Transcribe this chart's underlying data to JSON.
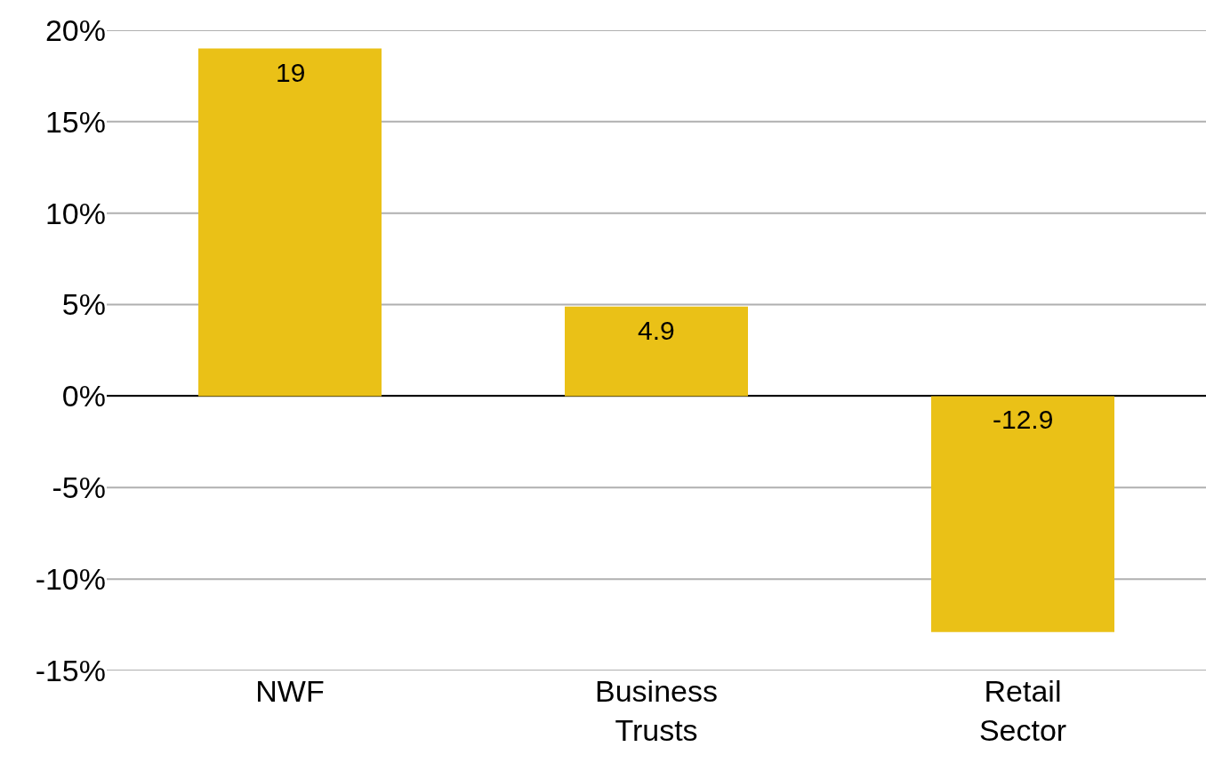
{
  "chart_data": {
    "type": "bar",
    "categories": [
      "NWF",
      "Business Trusts",
      "Retail Sector"
    ],
    "values": [
      19,
      4.9,
      -12.9
    ],
    "color": "#eac117",
    "data_labels": true,
    "ylim": [
      -15,
      20
    ],
    "yticks": [
      {
        "value": -15,
        "label": "-15%"
      },
      {
        "value": -10,
        "label": "-10%"
      },
      {
        "value": -5,
        "label": "-5%"
      },
      {
        "value": 0,
        "label": "0%"
      },
      {
        "value": 5,
        "label": "5%"
      },
      {
        "value": 10,
        "label": "10%"
      },
      {
        "value": 15,
        "label": "15%"
      },
      {
        "value": 20,
        "label": "20%"
      }
    ],
    "grid": "y"
  }
}
